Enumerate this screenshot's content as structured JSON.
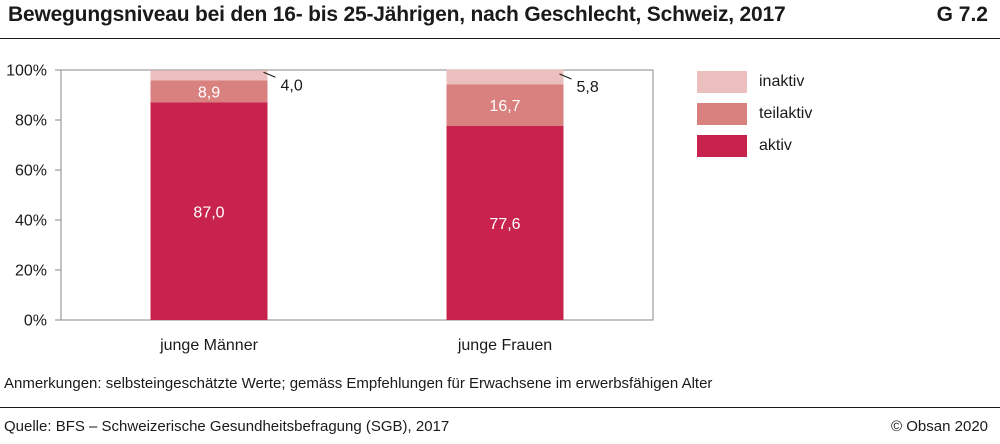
{
  "header": {
    "title": "Bewegungsniveau bei den 16- bis 25-Jährigen, nach Geschlecht, Schweiz, 2017",
    "code": "G 7.2"
  },
  "footer": {
    "note": "Anmerkungen: selbsteingeschätzte Werte; gemäss Empfehlungen für Erwachsene im erwerbsfähigen Alter",
    "source": "Quelle: BFS – Schweizerische Gesundheitsbefragung (SGB), 2017",
    "copyright": "© Obsan 2020"
  },
  "chart_data": {
    "type": "bar",
    "stacked": true,
    "categories": [
      "junge Männer",
      "junge Frauen"
    ],
    "series": [
      {
        "name": "aktiv",
        "values": [
          87.0,
          77.6
        ],
        "labels": [
          "87,0",
          "77,6"
        ],
        "color": "#c8234f",
        "label_color": "#ffffff"
      },
      {
        "name": "teilaktiv",
        "values": [
          8.9,
          16.7
        ],
        "labels": [
          "8,9",
          "16,7"
        ],
        "color": "#d9817f",
        "label_color": "#ffffff"
      },
      {
        "name": "inaktiv",
        "values": [
          4.0,
          5.8
        ],
        "labels": [
          "4,0",
          "5,8"
        ],
        "color": "#ebbfbd",
        "label_color": "#1a1a1a"
      }
    ],
    "yticks": [
      "0%",
      "20%",
      "40%",
      "60%",
      "80%",
      "100%"
    ],
    "ylim": [
      0,
      100
    ],
    "legend_order": [
      "inaktiv",
      "teilaktiv",
      "aktiv"
    ],
    "legend_position": "right"
  }
}
